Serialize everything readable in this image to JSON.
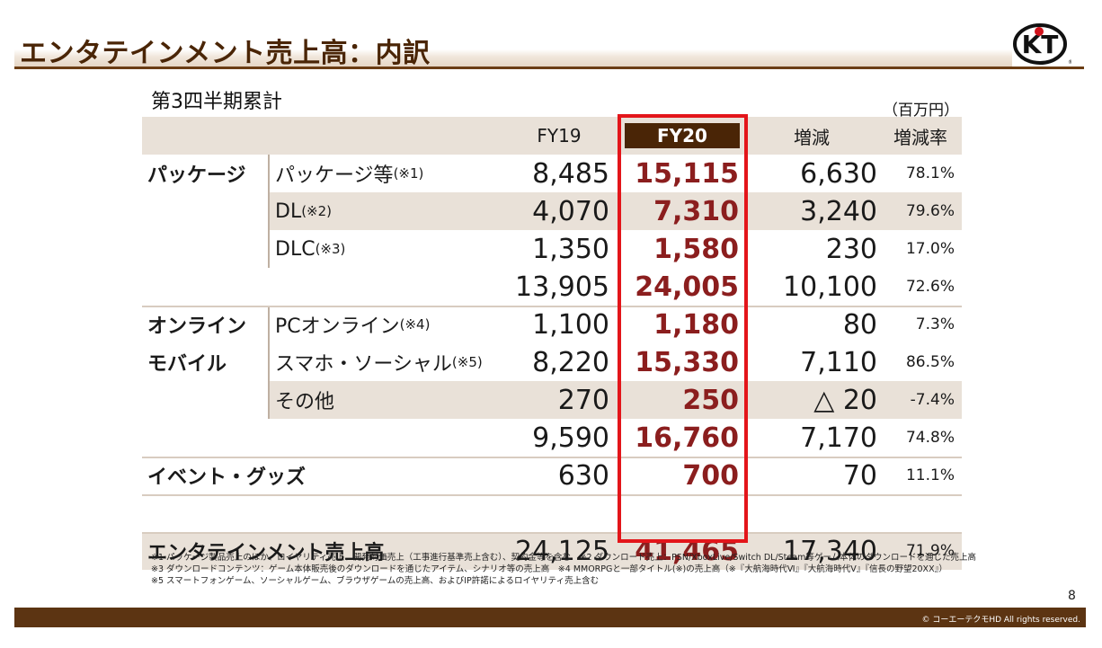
{
  "title": "エンタテインメント売上高：内訳",
  "logo_text": "KT",
  "subtitle": "第3四半期累計",
  "unit": "（百万円）",
  "headers": {
    "fy19": "FY19",
    "fy20": "FY20",
    "diff": "増減",
    "rate": "増減率"
  },
  "categories": {
    "package": "パッケージ",
    "online_1": "オンライン",
    "online_2": "モバイル",
    "event": "イベント・グッズ",
    "total": "エンタテインメント売上高"
  },
  "rows": [
    {
      "label": "パッケージ等",
      "note": "(※1)",
      "fy19": "8,485",
      "fy20": "15,115",
      "diff": "6,630",
      "rate": "78.1%"
    },
    {
      "label": "DL",
      "note": "(※2)",
      "fy19": "4,070",
      "fy20": "7,310",
      "diff": "3,240",
      "rate": "79.6%"
    },
    {
      "label": "DLC",
      "note": "(※3)",
      "fy19": "1,350",
      "fy20": "1,580",
      "diff": "230",
      "rate": "17.0%"
    },
    {
      "label": "",
      "note": "",
      "fy19": "13,905",
      "fy20": "24,005",
      "diff": "10,100",
      "rate": "72.6%"
    },
    {
      "label": "PCオンライン",
      "note": "(※4)",
      "fy19": "1,100",
      "fy20": "1,180",
      "diff": "80",
      "rate": "7.3%"
    },
    {
      "label": "スマホ・ソーシャル",
      "note": "(※5)",
      "fy19": "8,220",
      "fy20": "15,330",
      "diff": "7,110",
      "rate": "86.5%"
    },
    {
      "label": "その他",
      "note": "",
      "fy19": "270",
      "fy20": "250",
      "diff": "△ 20",
      "rate": "-7.4%"
    },
    {
      "label": "",
      "note": "",
      "fy19": "9,590",
      "fy20": "16,760",
      "diff": "7,170",
      "rate": "74.8%"
    },
    {
      "label": "",
      "note": "",
      "fy19": "630",
      "fy20": "700",
      "diff": "70",
      "rate": "11.1%"
    },
    {
      "label": "",
      "note": "",
      "fy19": "24,125",
      "fy20": "41,465",
      "diff": "17,340",
      "rate": "71.9%"
    }
  ],
  "notes": [
    "※1 パッケージ製品売上のほか、ロイヤリティ売上、開発対価売上（工事進行基準売上含む）、契約金等を含む　※2 ダウンロード売上：PSN/XboxLive/Switch DL/Steam等ゲーム本体のダウンロードを通じた売上高",
    "※3 ダウンロードコンテンツ：ゲーム本体販売後のダウンロードを通じたアイテム、シナリオ等の売上高　※4 MMORPGと一部タイトル(※)の売上高（※『大航海時代Ⅵ』『大航海時代Ⅴ』『信長の野望20XX』）",
    "※5 スマートフォンゲーム、ソーシャルゲーム、ブラウザゲームの売上高、およびIP許諾によるロイヤリティ売上含む"
  ],
  "page_number": "8",
  "copyright": "© コーエーテクモHD All rights reserved.",
  "colors": {
    "brand_brown": "#4a2506",
    "highlight_red": "#e3151a",
    "fy20_text": "#8b1e1e",
    "band": "#e9e1d8"
  }
}
